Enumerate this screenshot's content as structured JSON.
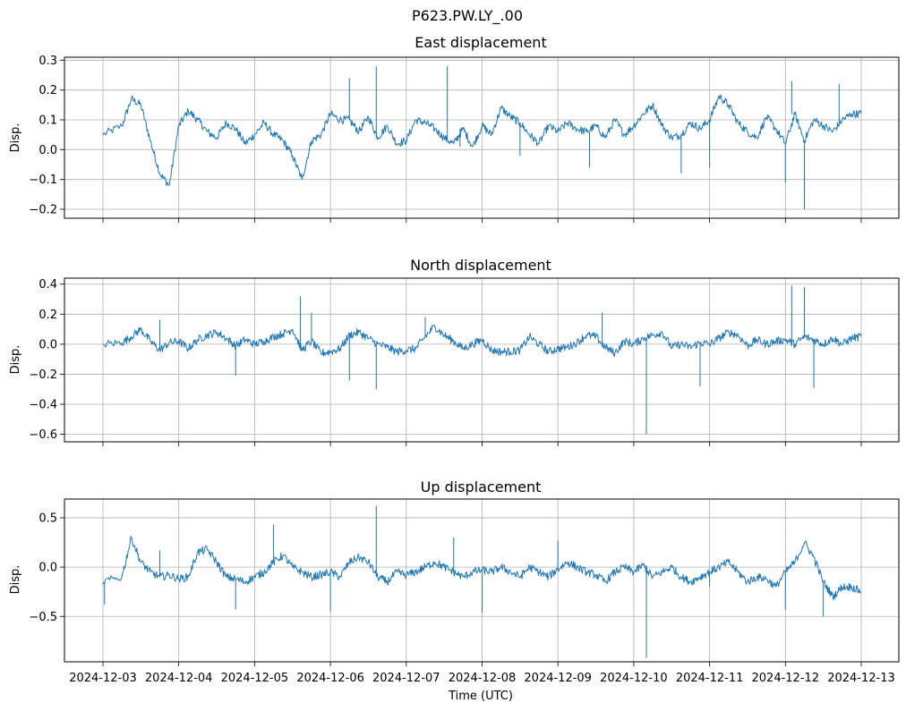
{
  "figure": {
    "suptitle": "P623.PW.LY_.00",
    "xlabel": "Time (UTC)",
    "line_color": "#1f77b4",
    "grid_color": "#b0b0b0"
  },
  "chart_data": [
    {
      "type": "line",
      "title": "East displacement",
      "ylabel": "Disp.",
      "xlim": [
        "2024-12-03",
        "2024-12-13"
      ],
      "ylim": [
        -0.23,
        0.31
      ],
      "grid": true,
      "yticks": [
        0.3,
        0.2,
        0.1,
        0.0,
        -0.1,
        -0.2
      ],
      "ytick_labels": [
        "0.3",
        "0.2",
        "0.1",
        "0.0",
        "−0.1",
        "−0.2"
      ],
      "x_dates": [
        "2024-12-03",
        "2024-12-04",
        "2024-12-05",
        "2024-12-06",
        "2024-12-07",
        "2024-12-08",
        "2024-12-09",
        "2024-12-10",
        "2024-12-11",
        "2024-12-12",
        "2024-12-13"
      ],
      "series": [
        {
          "x": [
            "2024-12-03T00:00",
            "2024-12-03T06:00",
            "2024-12-03T09:00",
            "2024-12-03T12:00",
            "2024-12-03T15:00",
            "2024-12-03T18:00",
            "2024-12-03T21:00",
            "2024-12-04T00:00",
            "2024-12-04T03:00",
            "2024-12-04T06:00",
            "2024-12-04T09:00",
            "2024-12-04T12:00",
            "2024-12-04T15:00",
            "2024-12-04T18:00",
            "2024-12-04T21:00",
            "2024-12-05T00:00",
            "2024-12-05T03:00",
            "2024-12-05T06:00",
            "2024-12-05T09:00",
            "2024-12-05T12:00",
            "2024-12-05T15:00",
            "2024-12-05T18:00",
            "2024-12-05T21:00",
            "2024-12-06T00:00",
            "2024-12-06T03:00",
            "2024-12-06T06:00",
            "2024-12-06T09:00",
            "2024-12-06T12:00",
            "2024-12-06T15:00",
            "2024-12-06T18:00",
            "2024-12-06T21:00",
            "2024-12-07T00:00",
            "2024-12-07T03:00",
            "2024-12-07T06:00",
            "2024-12-07T09:00",
            "2024-12-07T12:00",
            "2024-12-07T15:00",
            "2024-12-07T18:00",
            "2024-12-07T21:00",
            "2024-12-08T00:00",
            "2024-12-08T03:00",
            "2024-12-08T06:00",
            "2024-12-08T09:00",
            "2024-12-08T12:00",
            "2024-12-08T15:00",
            "2024-12-08T18:00",
            "2024-12-08T21:00",
            "2024-12-09T00:00",
            "2024-12-09T03:00",
            "2024-12-09T06:00",
            "2024-12-09T09:00",
            "2024-12-09T12:00",
            "2024-12-09T15:00",
            "2024-12-09T18:00",
            "2024-12-09T21:00",
            "2024-12-10T00:00",
            "2024-12-10T03:00",
            "2024-12-10T06:00",
            "2024-12-10T09:00",
            "2024-12-10T12:00",
            "2024-12-10T15:00",
            "2024-12-10T18:00",
            "2024-12-10T21:00",
            "2024-12-11T00:00",
            "2024-12-11T03:00",
            "2024-12-11T06:00",
            "2024-12-11T09:00",
            "2024-12-11T12:00",
            "2024-12-11T15:00",
            "2024-12-11T18:00",
            "2024-12-11T21:00",
            "2024-12-12T00:00",
            "2024-12-12T03:00",
            "2024-12-12T06:00",
            "2024-12-12T09:00",
            "2024-12-12T12:00",
            "2024-12-12T15:00",
            "2024-12-12T18:00",
            "2024-12-12T21:00",
            "2024-12-13T00:00"
          ],
          "y": [
            0.05,
            0.08,
            0.17,
            0.15,
            0.03,
            -0.08,
            -0.12,
            0.08,
            0.13,
            0.1,
            0.06,
            0.04,
            0.09,
            0.07,
            0.02,
            0.05,
            0.09,
            0.05,
            0.03,
            -0.02,
            -0.1,
            0.03,
            0.05,
            0.12,
            0.1,
            0.1,
            0.06,
            0.11,
            0.04,
            0.08,
            0.02,
            0.03,
            0.1,
            0.09,
            0.07,
            0.04,
            0.02,
            0.07,
            0.01,
            0.08,
            0.05,
            0.14,
            0.11,
            0.09,
            0.05,
            0.02,
            0.08,
            0.06,
            0.09,
            0.07,
            0.06,
            0.08,
            0.04,
            0.1,
            0.05,
            0.08,
            0.12,
            0.15,
            0.08,
            0.04,
            0.05,
            0.09,
            0.07,
            0.1,
            0.18,
            0.15,
            0.09,
            0.06,
            0.04,
            0.11,
            0.07,
            0.02,
            0.12,
            0.03,
            0.1,
            0.08,
            0.06,
            0.1,
            0.12,
            0.12
          ]
        }
      ],
      "spikes": [
        {
          "x": "2024-12-06T06:00",
          "y": 0.24
        },
        {
          "x": "2024-12-06T14:30",
          "y": 0.28
        },
        {
          "x": "2024-12-07T13:00",
          "y": 0.28
        },
        {
          "x": "2024-12-07T17:00",
          "y": 0.01
        },
        {
          "x": "2024-12-08T12:00",
          "y": -0.02
        },
        {
          "x": "2024-12-09T10:00",
          "y": -0.06
        },
        {
          "x": "2024-12-10T15:00",
          "y": -0.08
        },
        {
          "x": "2024-12-11T00:00",
          "y": -0.06
        },
        {
          "x": "2024-12-12T00:00",
          "y": -0.11
        },
        {
          "x": "2024-12-12T02:00",
          "y": 0.23
        },
        {
          "x": "2024-12-12T06:00",
          "y": -0.2
        },
        {
          "x": "2024-12-12T17:00",
          "y": 0.22
        }
      ]
    },
    {
      "type": "line",
      "title": "North displacement",
      "ylabel": "Disp.",
      "xlim": [
        "2024-12-03",
        "2024-12-13"
      ],
      "ylim": [
        -0.65,
        0.44
      ],
      "grid": true,
      "yticks": [
        0.4,
        0.2,
        0.0,
        -0.2,
        -0.4,
        -0.6
      ],
      "ytick_labels": [
        "0.4",
        "0.2",
        "0.0",
        "−0.2",
        "−0.4",
        "−0.6"
      ],
      "x_dates": [
        "2024-12-03",
        "2024-12-04",
        "2024-12-05",
        "2024-12-06",
        "2024-12-07",
        "2024-12-08",
        "2024-12-09",
        "2024-12-10",
        "2024-12-11",
        "2024-12-12",
        "2024-12-13"
      ],
      "series": [
        {
          "x": [
            "2024-12-03T00:00",
            "2024-12-03T06:00",
            "2024-12-03T09:00",
            "2024-12-03T12:00",
            "2024-12-03T15:00",
            "2024-12-03T18:00",
            "2024-12-03T21:00",
            "2024-12-04T00:00",
            "2024-12-04T03:00",
            "2024-12-04T06:00",
            "2024-12-04T09:00",
            "2024-12-04T12:00",
            "2024-12-04T15:00",
            "2024-12-04T18:00",
            "2024-12-04T21:00",
            "2024-12-05T00:00",
            "2024-12-05T03:00",
            "2024-12-05T06:00",
            "2024-12-05T09:00",
            "2024-12-05T12:00",
            "2024-12-05T15:00",
            "2024-12-05T18:00",
            "2024-12-05T21:00",
            "2024-12-06T00:00",
            "2024-12-06T03:00",
            "2024-12-06T06:00",
            "2024-12-06T09:00",
            "2024-12-06T12:00",
            "2024-12-06T15:00",
            "2024-12-06T18:00",
            "2024-12-06T21:00",
            "2024-12-07T00:00",
            "2024-12-07T03:00",
            "2024-12-07T06:00",
            "2024-12-07T09:00",
            "2024-12-07T12:00",
            "2024-12-07T15:00",
            "2024-12-07T18:00",
            "2024-12-07T21:00",
            "2024-12-08T00:00",
            "2024-12-08T03:00",
            "2024-12-08T06:00",
            "2024-12-08T09:00",
            "2024-12-08T12:00",
            "2024-12-08T15:00",
            "2024-12-08T18:00",
            "2024-12-08T21:00",
            "2024-12-09T00:00",
            "2024-12-09T03:00",
            "2024-12-09T06:00",
            "2024-12-09T09:00",
            "2024-12-09T12:00",
            "2024-12-09T15:00",
            "2024-12-09T18:00",
            "2024-12-09T21:00",
            "2024-12-10T00:00",
            "2024-12-10T03:00",
            "2024-12-10T06:00",
            "2024-12-10T09:00",
            "2024-12-10T12:00",
            "2024-12-10T15:00",
            "2024-12-10T18:00",
            "2024-12-10T21:00",
            "2024-12-11T00:00",
            "2024-12-11T03:00",
            "2024-12-11T06:00",
            "2024-12-11T09:00",
            "2024-12-11T12:00",
            "2024-12-11T15:00",
            "2024-12-11T18:00",
            "2024-12-11T21:00",
            "2024-12-12T00:00",
            "2024-12-12T03:00",
            "2024-12-12T06:00",
            "2024-12-12T09:00",
            "2024-12-12T12:00",
            "2024-12-12T15:00",
            "2024-12-12T18:00",
            "2024-12-12T21:00",
            "2024-12-13T00:00"
          ],
          "y": [
            0.0,
            0.01,
            0.05,
            0.1,
            0.02,
            -0.04,
            0.01,
            0.02,
            -0.03,
            0.03,
            0.06,
            0.08,
            0.04,
            -0.01,
            0.03,
            0.0,
            0.02,
            0.05,
            0.07,
            0.1,
            -0.04,
            0.02,
            -0.06,
            -0.05,
            -0.03,
            0.06,
            0.08,
            0.04,
            0.0,
            -0.02,
            -0.05,
            -0.04,
            -0.03,
            0.05,
            0.12,
            0.06,
            0.02,
            -0.03,
            0.0,
            0.03,
            -0.04,
            -0.05,
            -0.05,
            -0.04,
            0.05,
            0.0,
            -0.05,
            -0.03,
            -0.02,
            0.01,
            0.06,
            0.05,
            -0.02,
            -0.06,
            0.02,
            0.0,
            0.04,
            0.06,
            0.08,
            -0.02,
            0.0,
            -0.02,
            0.01,
            0.0,
            0.04,
            0.08,
            0.06,
            -0.01,
            0.03,
            0.0,
            0.02,
            0.03,
            0.0,
            0.05,
            0.03,
            0.0,
            0.04,
            0.0,
            0.04,
            0.05
          ]
        }
      ],
      "spikes": [
        {
          "x": "2024-12-03T18:00",
          "y": 0.16
        },
        {
          "x": "2024-12-04T18:00",
          "y": -0.21
        },
        {
          "x": "2024-12-05T14:30",
          "y": 0.32
        },
        {
          "x": "2024-12-05T18:00",
          "y": 0.21
        },
        {
          "x": "2024-12-06T06:00",
          "y": -0.24
        },
        {
          "x": "2024-12-06T14:30",
          "y": -0.3
        },
        {
          "x": "2024-12-07T06:00",
          "y": 0.18
        },
        {
          "x": "2024-12-09T14:00",
          "y": 0.21
        },
        {
          "x": "2024-12-10T04:00",
          "y": -0.6
        },
        {
          "x": "2024-12-10T21:00",
          "y": -0.28
        },
        {
          "x": "2024-12-12T02:00",
          "y": 0.39
        },
        {
          "x": "2024-12-12T06:00",
          "y": 0.38
        },
        {
          "x": "2024-12-12T09:00",
          "y": -0.29
        }
      ]
    },
    {
      "type": "line",
      "title": "Up displacement",
      "ylabel": "Disp.",
      "xlim": [
        "2024-12-03",
        "2024-12-13"
      ],
      "ylim": [
        -0.96,
        0.69
      ],
      "grid": true,
      "yticks": [
        0.5,
        0.0,
        -0.5
      ],
      "ytick_labels": [
        "0.5",
        "0.0",
        "−0.5"
      ],
      "x_dates": [
        "2024-12-03",
        "2024-12-04",
        "2024-12-05",
        "2024-12-06",
        "2024-12-07",
        "2024-12-08",
        "2024-12-09",
        "2024-12-10",
        "2024-12-11",
        "2024-12-12",
        "2024-12-13"
      ],
      "series": [
        {
          "x": [
            "2024-12-03T00:00",
            "2024-12-03T06:00",
            "2024-12-03T09:00",
            "2024-12-03T12:00",
            "2024-12-03T15:00",
            "2024-12-03T18:00",
            "2024-12-03T21:00",
            "2024-12-04T00:00",
            "2024-12-04T03:00",
            "2024-12-04T06:00",
            "2024-12-04T09:00",
            "2024-12-04T12:00",
            "2024-12-04T15:00",
            "2024-12-04T18:00",
            "2024-12-04T21:00",
            "2024-12-05T00:00",
            "2024-12-05T03:00",
            "2024-12-05T06:00",
            "2024-12-05T09:00",
            "2024-12-05T12:00",
            "2024-12-05T15:00",
            "2024-12-05T18:00",
            "2024-12-05T21:00",
            "2024-12-06T00:00",
            "2024-12-06T03:00",
            "2024-12-06T06:00",
            "2024-12-06T09:00",
            "2024-12-06T12:00",
            "2024-12-06T15:00",
            "2024-12-06T18:00",
            "2024-12-06T21:00",
            "2024-12-07T00:00",
            "2024-12-07T03:00",
            "2024-12-07T06:00",
            "2024-12-07T09:00",
            "2024-12-07T12:00",
            "2024-12-07T15:00",
            "2024-12-07T18:00",
            "2024-12-07T21:00",
            "2024-12-08T00:00",
            "2024-12-08T03:00",
            "2024-12-08T06:00",
            "2024-12-08T09:00",
            "2024-12-08T12:00",
            "2024-12-08T15:00",
            "2024-12-08T18:00",
            "2024-12-08T21:00",
            "2024-12-09T00:00",
            "2024-12-09T03:00",
            "2024-12-09T06:00",
            "2024-12-09T09:00",
            "2024-12-09T12:00",
            "2024-12-09T15:00",
            "2024-12-09T18:00",
            "2024-12-09T21:00",
            "2024-12-10T00:00",
            "2024-12-10T03:00",
            "2024-12-10T06:00",
            "2024-12-10T09:00",
            "2024-12-10T12:00",
            "2024-12-10T15:00",
            "2024-12-10T18:00",
            "2024-12-10T21:00",
            "2024-12-11T00:00",
            "2024-12-11T03:00",
            "2024-12-11T06:00",
            "2024-12-11T09:00",
            "2024-12-11T12:00",
            "2024-12-11T15:00",
            "2024-12-11T18:00",
            "2024-12-11T21:00",
            "2024-12-12T00:00",
            "2024-12-12T03:00",
            "2024-12-12T06:00",
            "2024-12-12T09:00",
            "2024-12-12T12:00",
            "2024-12-12T15:00",
            "2024-12-12T18:00",
            "2024-12-12T21:00",
            "2024-12-13T00:00"
          ],
          "y": [
            -0.15,
            -0.1,
            0.3,
            0.05,
            -0.05,
            -0.1,
            -0.08,
            -0.12,
            -0.1,
            0.15,
            0.18,
            0.05,
            -0.1,
            -0.12,
            -0.15,
            -0.1,
            -0.05,
            0.05,
            0.12,
            0.0,
            -0.05,
            -0.1,
            -0.08,
            -0.05,
            -0.1,
            0.05,
            0.1,
            0.05,
            -0.1,
            -0.15,
            -0.05,
            -0.08,
            -0.05,
            0.0,
            0.05,
            0.0,
            -0.05,
            -0.1,
            -0.05,
            -0.03,
            -0.05,
            0.0,
            -0.05,
            -0.1,
            0.0,
            -0.05,
            -0.1,
            -0.02,
            0.05,
            0.0,
            -0.05,
            -0.08,
            -0.15,
            -0.05,
            0.0,
            -0.05,
            0.02,
            -0.1,
            -0.05,
            0.0,
            -0.1,
            -0.15,
            -0.1,
            -0.05,
            0.0,
            0.05,
            -0.05,
            -0.15,
            -0.1,
            -0.12,
            -0.2,
            -0.05,
            0.05,
            0.25,
            0.1,
            -0.15,
            -0.3,
            -0.2,
            -0.2,
            -0.25
          ]
        }
      ],
      "spikes": [
        {
          "x": "2024-12-03T00:30",
          "y": -0.38
        },
        {
          "x": "2024-12-03T18:00",
          "y": 0.17
        },
        {
          "x": "2024-12-04T18:00",
          "y": -0.43
        },
        {
          "x": "2024-12-05T06:00",
          "y": 0.43
        },
        {
          "x": "2024-12-06T00:00",
          "y": -0.45
        },
        {
          "x": "2024-12-06T14:30",
          "y": 0.62
        },
        {
          "x": "2024-12-07T15:00",
          "y": 0.3
        },
        {
          "x": "2024-12-08T00:00",
          "y": -0.46
        },
        {
          "x": "2024-12-09T00:00",
          "y": 0.27
        },
        {
          "x": "2024-12-10T04:00",
          "y": -0.92
        },
        {
          "x": "2024-12-11T00:00",
          "y": -0.2
        },
        {
          "x": "2024-12-12T00:00",
          "y": -0.43
        },
        {
          "x": "2024-12-12T12:00",
          "y": -0.5
        }
      ]
    }
  ]
}
